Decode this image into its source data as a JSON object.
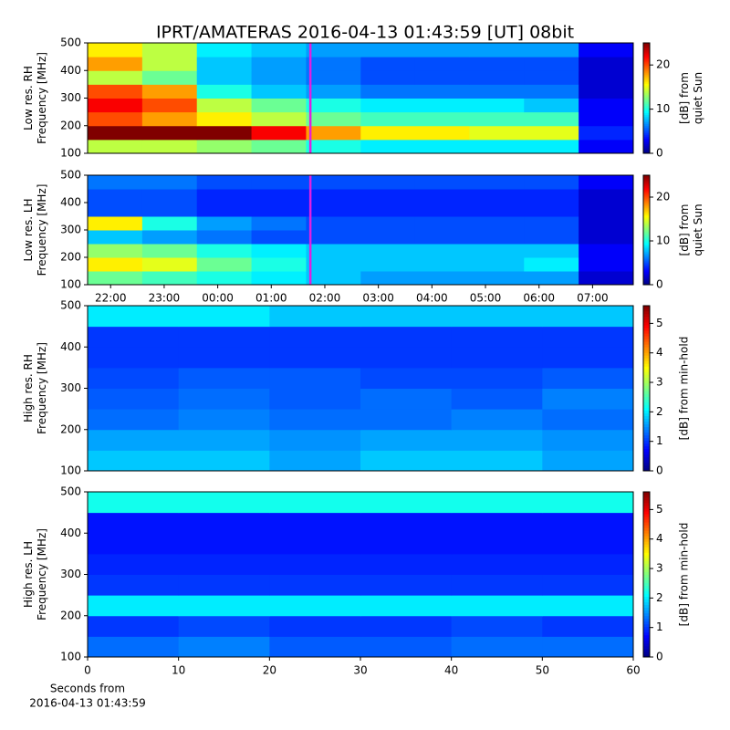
{
  "chart_data": [
    {
      "type": "heatmap",
      "title": "IPRT/AMATERAS 2016-04-13 01:43:59 [UT]   08bit",
      "ylabel": [
        "Low res. RH",
        "Frequency [MHz]"
      ],
      "ylim": [
        100,
        500
      ],
      "yticks": [
        100,
        200,
        300,
        400,
        500
      ],
      "xlim": [
        21.57,
        31.76
      ],
      "x_edges": [
        21.57,
        22.59,
        23.61,
        24.63,
        25.65,
        26.67,
        27.68,
        28.7,
        29.72,
        30.74,
        31.76
      ],
      "y_edges": [
        100,
        150,
        200,
        250,
        300,
        350,
        400,
        450,
        500
      ],
      "z": [
        [
          14,
          14,
          13,
          12,
          10,
          9,
          9,
          9,
          9,
          3
        ],
        [
          25,
          25,
          25,
          22,
          18,
          16,
          16,
          15,
          15,
          4
        ],
        [
          20,
          18,
          16,
          14,
          12,
          11,
          11,
          11,
          11,
          3
        ],
        [
          22,
          20,
          14,
          12,
          10,
          9,
          9,
          9,
          8,
          3
        ],
        [
          20,
          18,
          10,
          8,
          7,
          6,
          6,
          6,
          6,
          2
        ],
        [
          14,
          12,
          8,
          7,
          6,
          5,
          5,
          5,
          5,
          2
        ],
        [
          18,
          14,
          8,
          7,
          6,
          5,
          5,
          5,
          5,
          2
        ],
        [
          16,
          14,
          9,
          8,
          7,
          7,
          7,
          7,
          7,
          3
        ]
      ],
      "clim": [
        0,
        25
      ],
      "cticks": [
        0,
        10,
        20
      ],
      "colorbar_label": [
        "[dB] from",
        "quiet Sun"
      ],
      "marker_x": 25.73,
      "marker_color": "#e020e0"
    },
    {
      "type": "heatmap",
      "ylabel": [
        "Low res. LH",
        "Frequency [MHz]"
      ],
      "ylim": [
        100,
        500
      ],
      "yticks": [
        100,
        200,
        300,
        400,
        500
      ],
      "xlim": [
        21.57,
        31.76
      ],
      "x_edges": [
        21.57,
        22.59,
        23.61,
        24.63,
        25.65,
        26.67,
        27.68,
        28.7,
        29.72,
        30.74,
        31.76
      ],
      "xticks": [
        {
          "value": 22,
          "label": "22:00"
        },
        {
          "value": 23,
          "label": "23:00"
        },
        {
          "value": 24,
          "label": "00:00"
        },
        {
          "value": 25,
          "label": "01:00"
        },
        {
          "value": 26,
          "label": "02:00"
        },
        {
          "value": 27,
          "label": "03:00"
        },
        {
          "value": 28,
          "label": "04:00"
        },
        {
          "value": 29,
          "label": "05:00"
        },
        {
          "value": 30,
          "label": "06:00"
        },
        {
          "value": 31,
          "label": "07:00"
        }
      ],
      "y_edges": [
        100,
        150,
        200,
        250,
        300,
        350,
        400,
        450,
        500
      ],
      "z": [
        [
          12,
          11,
          10,
          9,
          8,
          7,
          7,
          7,
          7,
          2
        ],
        [
          16,
          15,
          12,
          10,
          8,
          8,
          8,
          8,
          9,
          3
        ],
        [
          13,
          12,
          10,
          9,
          8,
          8,
          8,
          8,
          8,
          3
        ],
        [
          8,
          7,
          6,
          5,
          5,
          5,
          5,
          5,
          5,
          2
        ],
        [
          16,
          10,
          7,
          6,
          5,
          5,
          5,
          5,
          5,
          2
        ],
        [
          5,
          5,
          4,
          4,
          4,
          4,
          4,
          4,
          4,
          2
        ],
        [
          5,
          5,
          4,
          4,
          4,
          4,
          4,
          4,
          4,
          2
        ],
        [
          6,
          6,
          5,
          5,
          5,
          5,
          5,
          5,
          5,
          3
        ]
      ],
      "clim": [
        0,
        25
      ],
      "cticks": [
        0,
        10,
        20
      ],
      "colorbar_label": [
        "[dB] from",
        "quiet Sun"
      ],
      "marker_x": 25.73,
      "marker_color": "#e020e0"
    },
    {
      "type": "heatmap",
      "ylabel": [
        "High res. RH",
        "Frequency [MHz]"
      ],
      "ylim": [
        100,
        500
      ],
      "yticks": [
        100,
        200,
        300,
        400,
        500
      ],
      "xlim": [
        0,
        60
      ],
      "x_edges": [
        0,
        10,
        20,
        30,
        40,
        50,
        60
      ],
      "y_edges": [
        100,
        150,
        200,
        250,
        300,
        350,
        400,
        450,
        500
      ],
      "z": [
        [
          1.8,
          1.8,
          1.6,
          1.8,
          1.8,
          1.6
        ],
        [
          1.6,
          1.6,
          1.5,
          1.6,
          1.6,
          1.5
        ],
        [
          1.3,
          1.4,
          1.3,
          1.3,
          1.4,
          1.3
        ],
        [
          1.2,
          1.3,
          1.2,
          1.3,
          1.2,
          1.4
        ],
        [
          1.1,
          1.2,
          1.2,
          1.1,
          1.1,
          1.2
        ],
        [
          1.0,
          1.0,
          1.0,
          1.0,
          1.0,
          1.0
        ],
        [
          1.0,
          1.0,
          1.0,
          1.0,
          1.0,
          1.0
        ],
        [
          2.0,
          2.0,
          1.8,
          1.8,
          1.8,
          1.8
        ]
      ],
      "clim": [
        0,
        5.6
      ],
      "cticks": [
        0,
        1,
        2,
        3,
        4,
        5
      ],
      "colorbar_label": [
        "[dB] from min-hold"
      ]
    },
    {
      "type": "heatmap",
      "ylabel": [
        "High res. LH",
        "Frequency [MHz]"
      ],
      "ylim": [
        100,
        500
      ],
      "yticks": [
        100,
        200,
        300,
        400,
        500
      ],
      "xlim": [
        0,
        60
      ],
      "x_edges": [
        0,
        10,
        20,
        30,
        40,
        50,
        60
      ],
      "xticks": [
        0,
        10,
        20,
        30,
        40,
        50,
        60
      ],
      "xlabel": [
        "Seconds from",
        "2016-04-13 01:43:59"
      ],
      "y_edges": [
        100,
        150,
        200,
        250,
        300,
        350,
        400,
        450,
        500
      ],
      "z": [
        [
          1.3,
          1.4,
          1.2,
          1.2,
          1.3,
          1.3
        ],
        [
          1.0,
          1.1,
          1.0,
          1.0,
          1.1,
          1.0
        ],
        [
          2.0,
          2.0,
          2.0,
          2.0,
          2.0,
          2.0
        ],
        [
          1.0,
          1.0,
          1.0,
          1.0,
          1.0,
          1.0
        ],
        [
          0.9,
          0.9,
          0.9,
          0.9,
          0.9,
          0.9
        ],
        [
          0.8,
          0.8,
          0.8,
          0.8,
          0.8,
          0.8
        ],
        [
          0.8,
          0.8,
          0.8,
          0.8,
          0.8,
          0.8
        ],
        [
          2.2,
          2.2,
          2.2,
          2.2,
          2.2,
          2.2
        ]
      ],
      "clim": [
        0,
        5.6
      ],
      "cticks": [
        0,
        1,
        2,
        3,
        4,
        5
      ],
      "colorbar_label": [
        "[dB] from min-hold"
      ]
    }
  ]
}
